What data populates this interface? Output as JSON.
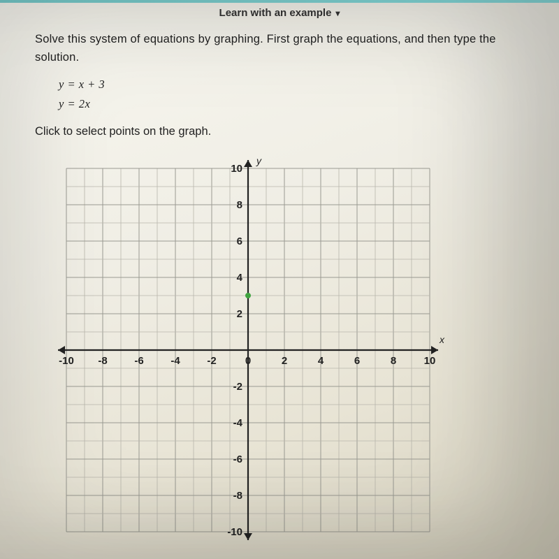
{
  "topbar": {
    "learn_label": "Learn with an example"
  },
  "problem": {
    "prompt": "Solve this system of equations by graphing. First graph the equations, and then type the solution.",
    "eq1": "y = x + 3",
    "eq2": "y = 2x",
    "instruction": "Click to select points on the graph."
  },
  "graph": {
    "type": "scatter",
    "xlim": [
      -10,
      10
    ],
    "ylim": [
      -10,
      10
    ],
    "tick_step": 2,
    "grid_step": 1,
    "x_axis_label": "x",
    "y_axis_label": "y",
    "axis_color": "#222222",
    "grid_color": "#9a9a92",
    "background": "transparent",
    "tick_fontsize": 15,
    "plotted_points": [
      {
        "x": 0,
        "y": 3,
        "color": "#3fa33f",
        "radius": 4
      }
    ],
    "x_ticks": [
      -10,
      -8,
      -6,
      -4,
      -2,
      0,
      2,
      4,
      6,
      8,
      10
    ],
    "y_ticks": [
      10,
      8,
      6,
      4,
      2,
      0,
      -2,
      -4,
      -6,
      -8,
      -10
    ]
  }
}
